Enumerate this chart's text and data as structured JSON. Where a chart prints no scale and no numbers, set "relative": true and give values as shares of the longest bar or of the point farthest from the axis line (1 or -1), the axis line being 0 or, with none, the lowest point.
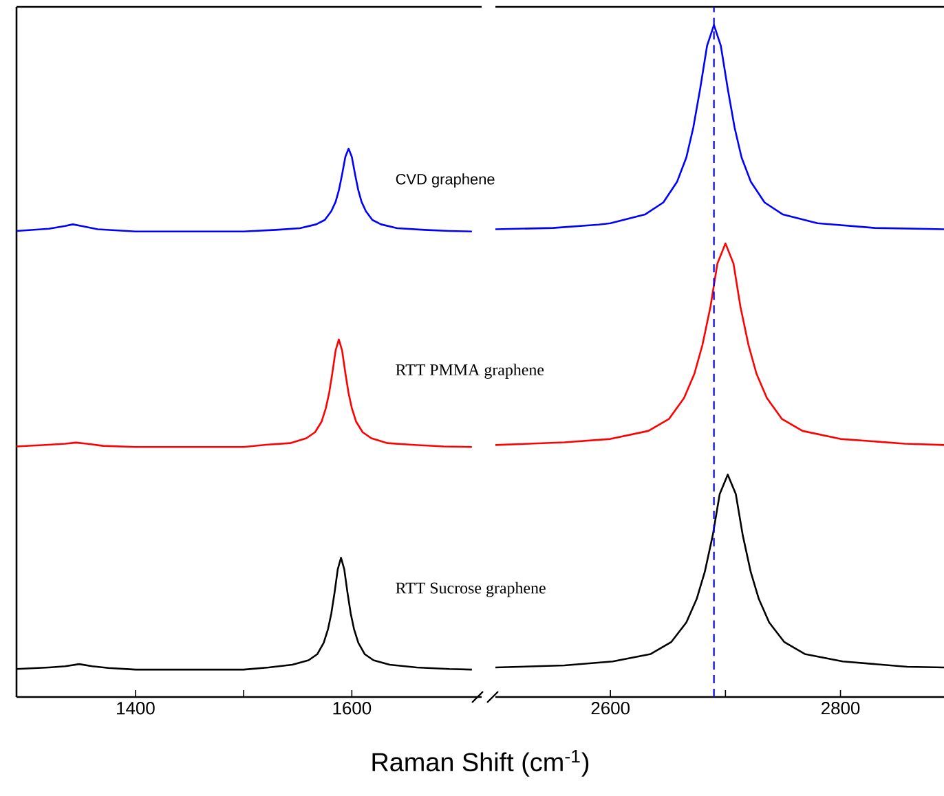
{
  "chart_data": [
    {
      "type": "line",
      "relative": true,
      "xlabel": "Raman Shift (cm$^{-1}$)",
      "xlim": [
        1290,
        1720
      ],
      "xticks": [
        1400,
        {
          "value": 1500,
          "label": null
        },
        1600
      ],
      "series": [
        {
          "name": "CVD graphene",
          "color": "#0000ff",
          "x": [
            1290,
            1320,
            1335,
            1342,
            1350,
            1365,
            1400,
            1450,
            1500,
            1530,
            1552,
            1567,
            1575,
            1581,
            1585,
            1588,
            1591,
            1594,
            1597,
            1600,
            1603,
            1606,
            1609,
            1613,
            1619,
            1627,
            1642,
            1667,
            1690,
            1711
          ],
          "values": [
            0.85,
            0.854,
            0.859,
            0.862,
            0.859,
            0.853,
            0.849,
            0.849,
            0.849,
            0.852,
            0.855,
            0.862,
            0.87,
            0.886,
            0.903,
            0.924,
            0.953,
            0.985,
            1.0,
            0.985,
            0.953,
            0.924,
            0.903,
            0.886,
            0.87,
            0.862,
            0.855,
            0.852,
            0.85,
            0.849
          ]
        },
        {
          "name": "RTT PMMA  graphene",
          "color": "#ff0000",
          "x": [
            1290,
            1320,
            1335,
            1345,
            1355,
            1370,
            1400,
            1450,
            1500,
            1521,
            1543,
            1558,
            1566,
            1572,
            1576,
            1579,
            1582,
            1585,
            1588,
            1591,
            1594,
            1597,
            1600,
            1604,
            1610,
            1618,
            1633,
            1655,
            1685,
            1711
          ],
          "values": [
            0.457,
            0.46,
            0.462,
            0.464,
            0.462,
            0.458,
            0.456,
            0.456,
            0.456,
            0.46,
            0.463,
            0.472,
            0.483,
            0.502,
            0.527,
            0.554,
            0.591,
            0.632,
            0.652,
            0.632,
            0.591,
            0.554,
            0.527,
            0.502,
            0.483,
            0.472,
            0.463,
            0.46,
            0.457,
            0.456
          ]
        },
        {
          "name": "RTT  Sucrose graphene",
          "color": "#000000",
          "x": [
            1290,
            1320,
            1335,
            1348,
            1360,
            1375,
            1400,
            1450,
            1500,
            1523,
            1545,
            1560,
            1568,
            1574,
            1578,
            1581,
            1584,
            1587,
            1590,
            1593,
            1596,
            1599,
            1602,
            1606,
            1612,
            1620,
            1635,
            1660,
            1690,
            1711
          ],
          "values": [
            0.051,
            0.054,
            0.056,
            0.06,
            0.056,
            0.053,
            0.05,
            0.05,
            0.05,
            0.054,
            0.059,
            0.067,
            0.078,
            0.099,
            0.124,
            0.152,
            0.19,
            0.233,
            0.254,
            0.233,
            0.19,
            0.152,
            0.124,
            0.099,
            0.078,
            0.067,
            0.059,
            0.054,
            0.051,
            0.05
          ]
        }
      ]
    },
    {
      "type": "line",
      "relative": true,
      "xlim": [
        2500,
        2890
      ],
      "xticks": [
        2600,
        {
          "value": 2700,
          "label": null
        },
        2800
      ],
      "ref_lines": [
        {
          "axis": "x",
          "value": 2690,
          "color": "#0000ff",
          "line_style": "dashed"
        }
      ],
      "series": [
        {
          "color": "#0000ff",
          "x": [
            2500,
            2550,
            2590,
            2600,
            2630,
            2646,
            2658,
            2666,
            2672,
            2678,
            2684,
            2690,
            2696,
            2702,
            2708,
            2714,
            2722,
            2734,
            2750,
            2780,
            2830,
            2890
          ],
          "values": [
            0.696,
            0.698,
            0.703,
            0.705,
            0.718,
            0.736,
            0.767,
            0.803,
            0.847,
            0.905,
            0.969,
            1.0,
            0.969,
            0.905,
            0.847,
            0.803,
            0.767,
            0.736,
            0.718,
            0.705,
            0.698,
            0.696
          ]
        },
        {
          "color": "#ff0000",
          "x": [
            2500,
            2560,
            2600,
            2633,
            2651,
            2664,
            2673,
            2680,
            2687,
            2693,
            2700,
            2707,
            2713,
            2720,
            2727,
            2736,
            2749,
            2767,
            2800,
            2856,
            2890
          ],
          "values": [
            0.375,
            0.379,
            0.384,
            0.396,
            0.414,
            0.445,
            0.481,
            0.524,
            0.581,
            0.645,
            0.675,
            0.645,
            0.581,
            0.524,
            0.481,
            0.445,
            0.414,
            0.396,
            0.384,
            0.377,
            0.375
          ]
        },
        {
          "color": "#000000",
          "x": [
            2500,
            2560,
            2602,
            2635,
            2653,
            2666,
            2675,
            2682,
            2689,
            2695,
            2702,
            2709,
            2715,
            2722,
            2729,
            2738,
            2751,
            2769,
            2802,
            2858,
            2890
          ],
          "values": [
            0.044,
            0.047,
            0.053,
            0.064,
            0.082,
            0.111,
            0.146,
            0.186,
            0.241,
            0.302,
            0.331,
            0.302,
            0.241,
            0.186,
            0.146,
            0.111,
            0.082,
            0.064,
            0.053,
            0.045,
            0.044
          ]
        }
      ]
    }
  ]
}
